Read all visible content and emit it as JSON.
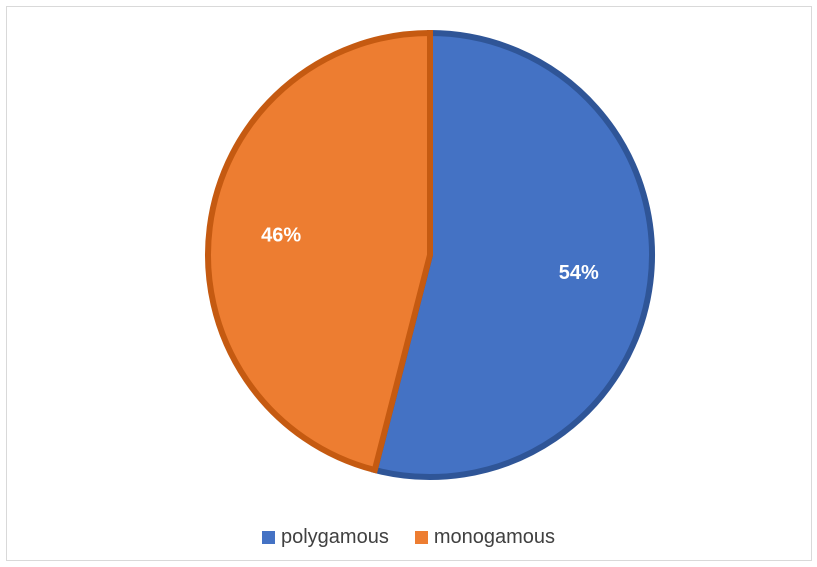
{
  "chart_data": {
    "type": "pie",
    "title": "",
    "slices": [
      {
        "label": "polygamous",
        "value": 54,
        "display": "54%",
        "color": "#4472C4",
        "edge_color": "#2F5597"
      },
      {
        "label": "monogamous",
        "value": 46,
        "display": "46%",
        "color": "#ED7D31",
        "edge_color": "#C55A11"
      }
    ],
    "start_angle_deg": 0,
    "direction": "clockwise",
    "legend_position": "bottom",
    "data_label_color": "#FFFFFF"
  },
  "legend": {
    "items": [
      {
        "label": "polygamous",
        "color": "#4472C4"
      },
      {
        "label": "monogamous",
        "color": "#ED7D31"
      }
    ]
  }
}
